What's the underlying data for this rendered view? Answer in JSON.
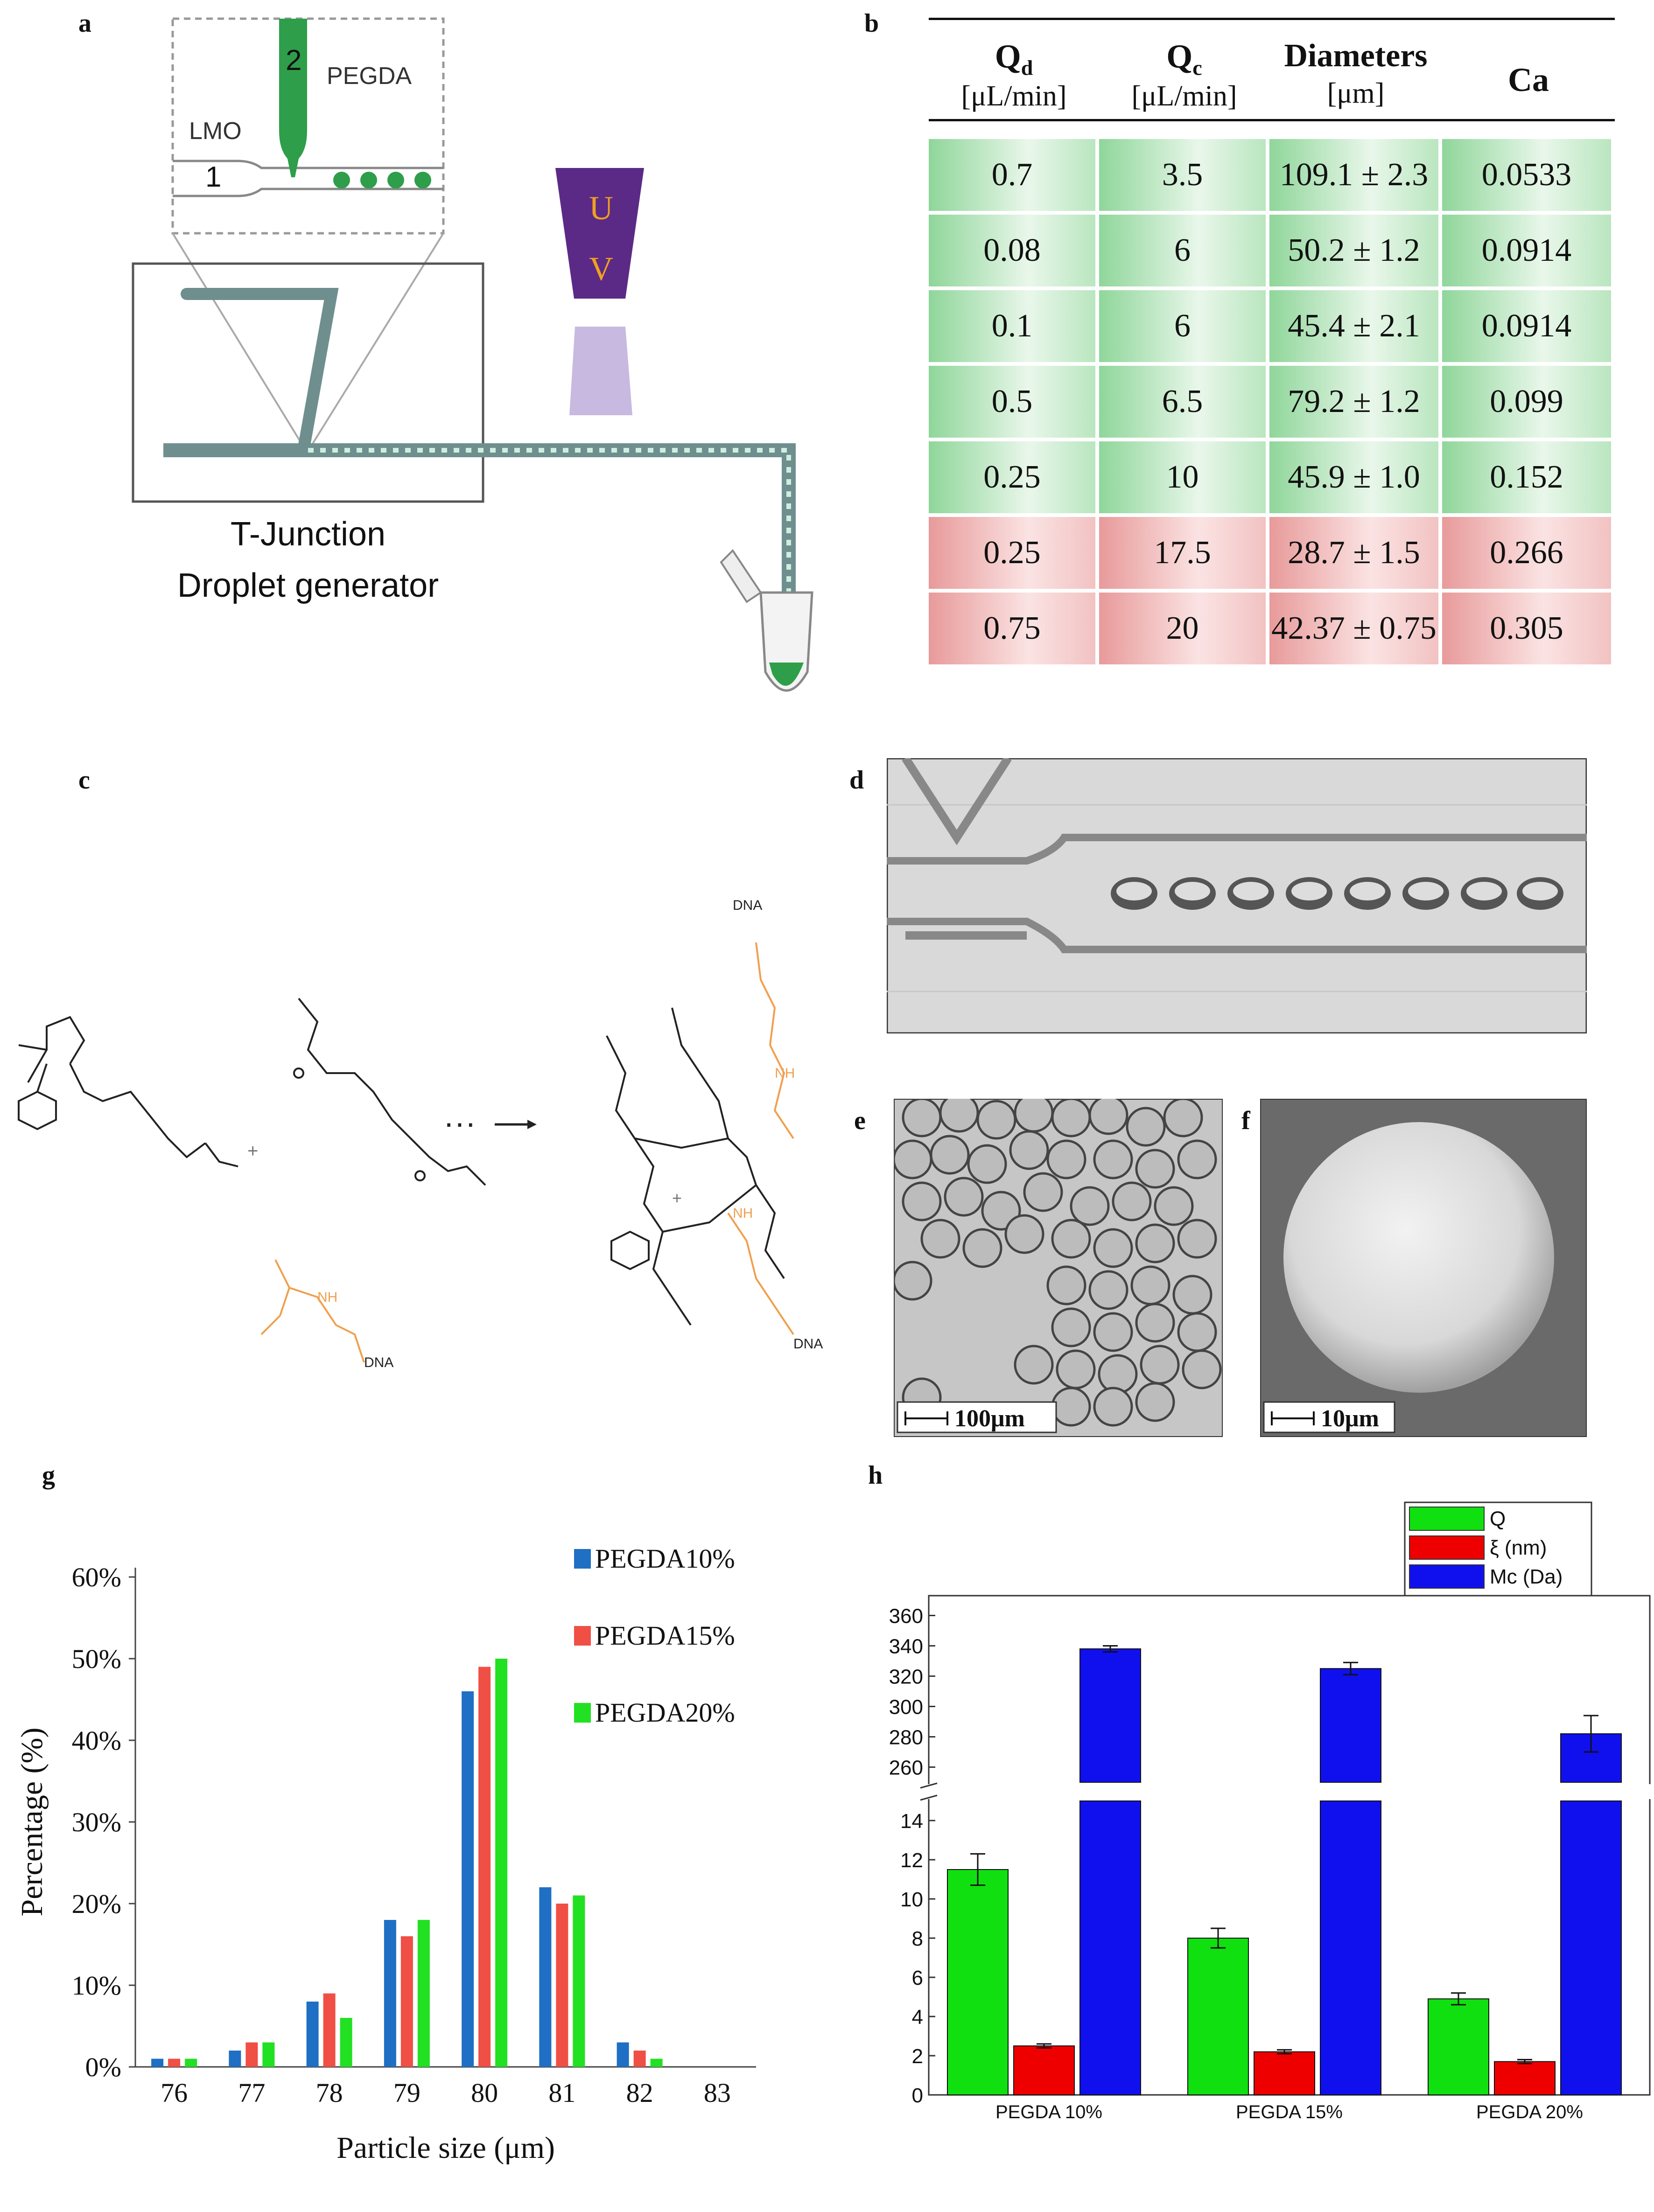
{
  "panel_labels": {
    "a": "a",
    "b": "b",
    "c": "c",
    "d": "d",
    "e": "e",
    "f": "f",
    "g": "g",
    "h": "h"
  },
  "panel_a": {
    "inlet_2": "2",
    "inlet_1": "1",
    "pegda_label": "PEGDA",
    "lmo_label": "LMO",
    "uv_u": "U",
    "uv_v": "V",
    "caption_line1": "T-Junction",
    "caption_line2": "Droplet generator",
    "colors": {
      "green": "#2e9e4a",
      "uv_purple": "#5b2a86",
      "uv_text": "#f0a020",
      "uv_beam": "#c8b9e0"
    }
  },
  "panel_b": {
    "headers": [
      {
        "main": "Q",
        "sub": "d",
        "unit": "[μL/min]"
      },
      {
        "main": "Q",
        "sub": "c",
        "unit": "[μL/min]"
      },
      {
        "main": "Diameters",
        "sub": "",
        "unit": "[μm]"
      },
      {
        "main": "Ca",
        "sub": "",
        "unit": ""
      }
    ],
    "rows": [
      {
        "qd": "0.7",
        "qc": "3.5",
        "diam": "109.1 ± 2.3",
        "ca": "0.0533",
        "status": "green"
      },
      {
        "qd": "0.08",
        "qc": "6",
        "diam": "50.2 ± 1.2",
        "ca": "0.0914",
        "status": "green"
      },
      {
        "qd": "0.1",
        "qc": "6",
        "diam": "45.4 ± 2.1",
        "ca": "0.0914",
        "status": "green"
      },
      {
        "qd": "0.5",
        "qc": "6.5",
        "diam": "79.2 ± 1.2",
        "ca": "0.099",
        "status": "green"
      },
      {
        "qd": "0.25",
        "qc": "10",
        "diam": "45.9 ± 1.0",
        "ca": "0.152",
        "status": "green"
      },
      {
        "qd": "0.25",
        "qc": "17.5",
        "diam": "28.7 ± 1.5",
        "ca": "0.266",
        "status": "red"
      },
      {
        "qd": "0.75",
        "qc": "20",
        "diam": "42.37 ± 0.75",
        "ca": "0.305",
        "status": "red"
      }
    ]
  },
  "panel_c": {
    "dna_label_1": "DNA",
    "dna_label_2": "DNA",
    "dna_label_3": "DNA",
    "nh_label_1": "NH",
    "nh_label_2": "NH",
    "nh_label_3": "NH",
    "plus_1": "+",
    "plus_2": "+",
    "ellipsis": "···",
    "colors": {
      "orange": "#f0a050",
      "black": "#222222"
    }
  },
  "panel_e": {
    "scale_label": "100μm"
  },
  "panel_f": {
    "scale_label": "10μm"
  },
  "chart_data": [
    {
      "type": "bar",
      "panel": "g",
      "categories": [
        "76",
        "77",
        "78",
        "79",
        "80",
        "81",
        "82",
        "83"
      ],
      "series": [
        {
          "name": "PEGDA10%",
          "values": [
            1,
            2,
            8,
            18,
            46,
            22,
            3,
            0
          ],
          "color": "#1f6fc4"
        },
        {
          "name": "PEGDA15%",
          "values": [
            1,
            3,
            9,
            16,
            49,
            20,
            2,
            0
          ],
          "color": "#f04f45"
        },
        {
          "name": "PEGDA20%",
          "values": [
            1,
            3,
            6,
            18,
            50,
            21,
            1,
            0
          ],
          "color": "#22e022"
        }
      ],
      "xlabel": "Particle size (μm)",
      "ylabel": "Percentage (%)",
      "yticks": [
        "0%",
        "10%",
        "20%",
        "30%",
        "40%",
        "50%",
        "60%"
      ],
      "ylim": [
        0,
        60
      ],
      "legend": "top-right"
    },
    {
      "type": "bar",
      "panel": "h",
      "categories": [
        "PEGDA 10%",
        "PEGDA 15%",
        "PEGDA 20%"
      ],
      "series": [
        {
          "name": "Q",
          "values": [
            11.5,
            8.0,
            4.9
          ],
          "errors": [
            0.8,
            0.5,
            0.3
          ],
          "color": "#10e010"
        },
        {
          "name": "ξ (nm)",
          "values": [
            2.5,
            2.2,
            1.7
          ],
          "errors": [
            0.1,
            0.1,
            0.1
          ],
          "color": "#ee0000"
        },
        {
          "name": "Mc (Da)",
          "values": [
            338,
            325,
            282
          ],
          "errors": [
            2,
            4,
            12
          ],
          "color": "#1010ee"
        }
      ],
      "lower_yticks": [
        "0",
        "2",
        "4",
        "6",
        "8",
        "10",
        "12",
        "14"
      ],
      "upper_yticks": [
        "260",
        "280",
        "300",
        "320",
        "340",
        "360"
      ],
      "lower_ylim": [
        0,
        15
      ],
      "upper_ylim": [
        250,
        370
      ],
      "axis_break": true,
      "legend": "top-right"
    }
  ]
}
